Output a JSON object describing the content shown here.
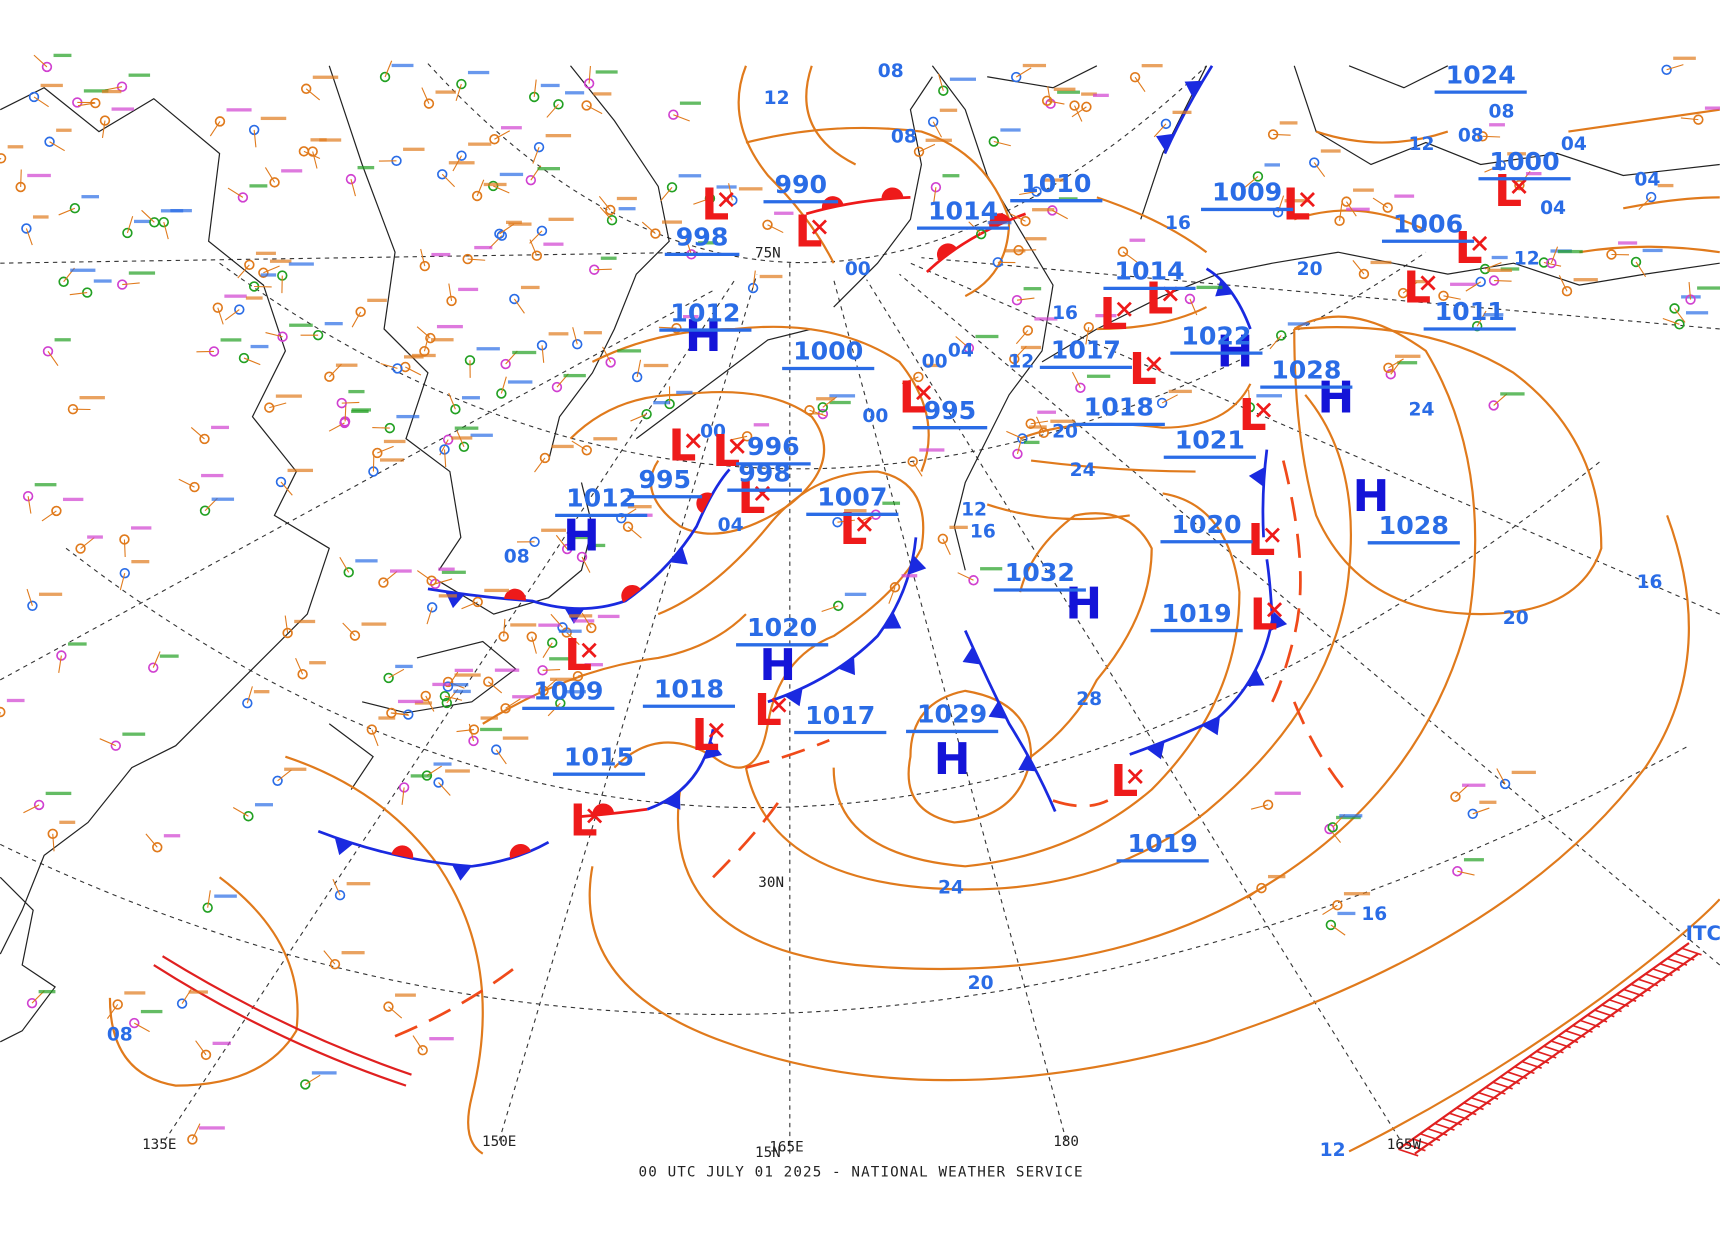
{
  "map": {
    "footer": "00 UTC JULY 01 2025 - NATIONAL WEATHER SERVICE",
    "high_symbol": "H",
    "low_symbol": "L",
    "itcz": "ITC",
    "grid_labels": [
      "135E",
      "150E",
      "165E",
      "180",
      "165W",
      "30N",
      "15N",
      "75N"
    ],
    "pressure_labels": [
      "990",
      "998",
      "1012",
      "1000",
      "996",
      "998",
      "995",
      "1012",
      "1007",
      "1020",
      "1018",
      "1009",
      "1017",
      "1015",
      "1029",
      "1032",
      "1019",
      "1020",
      "1021",
      "1018",
      "1017",
      "1022",
      "1028",
      "1028",
      "1014",
      "1009",
      "1010",
      "1014",
      "995",
      "1006",
      "1000",
      "1011",
      "1024",
      "1019"
    ],
    "isobar_labels": [
      "12",
      "08",
      "00",
      "00",
      "00",
      "04",
      "08",
      "04",
      "00",
      "12",
      "16",
      "20",
      "24",
      "12",
      "16",
      "28",
      "24",
      "20",
      "16",
      "20",
      "16",
      "24",
      "20",
      "16",
      "12",
      "08",
      "08",
      "04",
      "04",
      "04",
      "12",
      "08",
      "12",
      "08"
    ]
  }
}
